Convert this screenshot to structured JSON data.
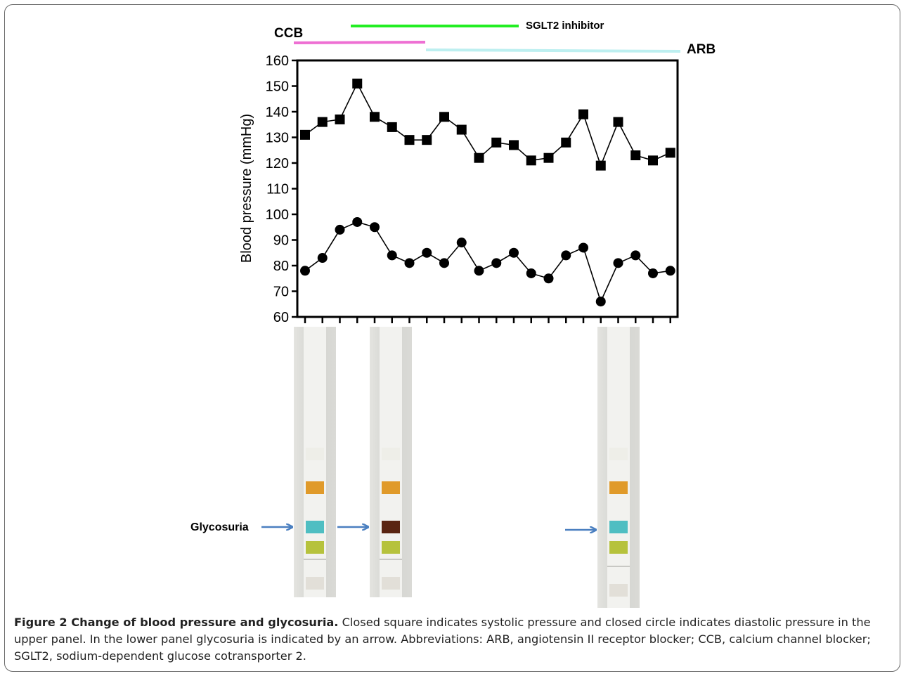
{
  "chart_data": {
    "type": "line",
    "ylabel": "Blood pressure (mmHg)",
    "ylim": [
      60,
      160
    ],
    "yticks": [
      "60",
      "70",
      "80",
      "90",
      "100",
      "110",
      "120",
      "130",
      "140",
      "150",
      "160"
    ],
    "x_count": 22,
    "grid": false,
    "series": [
      {
        "marker": "square",
        "color": "#000000",
        "values": [
          131,
          136,
          137,
          151,
          138,
          134,
          129,
          129,
          138,
          133,
          122,
          128,
          127,
          121,
          122,
          128,
          139,
          119,
          136,
          123,
          121,
          124
        ]
      },
      {
        "marker": "circle",
        "color": "#000000",
        "values": [
          78,
          83,
          94,
          97,
          95,
          84,
          81,
          85,
          81,
          89,
          78,
          81,
          85,
          77,
          75,
          84,
          87,
          66,
          81,
          84,
          77,
          78
        ]
      }
    ],
    "treatments": [
      {
        "label": "CCB",
        "color": "#ee6fd3"
      },
      {
        "label": "SGLT2 inhibitor",
        "color": "#22ee22"
      },
      {
        "label": "ARB",
        "color": "#bdeff0"
      }
    ]
  },
  "annotations": {
    "glycosuria_label": "Glycosuria"
  },
  "colors": {
    "arrow": "#4a7fc0",
    "pad_orange": "#e09a2a",
    "pad_cyan": "#4fbec2",
    "pad_brown": "#5a2512",
    "pad_yellowgreen": "#b6c23c"
  },
  "caption": {
    "title": "Figure 2 Change of blood pressure and glycosuria.",
    "text": " Closed square indicates systolic pressure and closed circle indicates diastolic pressure in the upper panel. In the lower panel glycosuria is indicated by an arrow. Abbreviations: ARB, angiotensin II receptor blocker; CCB, calcium channel blocker; SGLT2, sodium-dependent glucose cotransporter 2."
  }
}
